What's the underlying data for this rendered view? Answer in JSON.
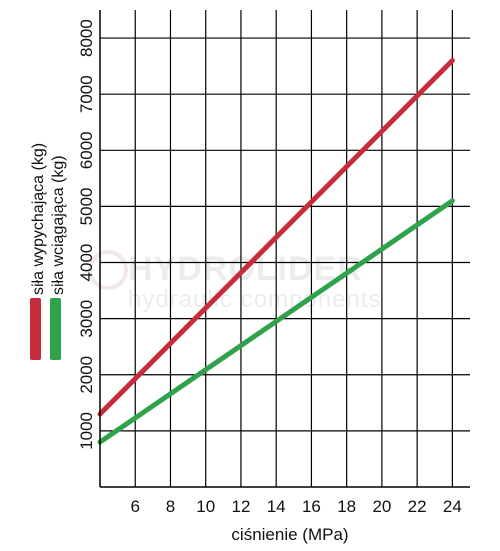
{
  "chart_data": {
    "type": "line",
    "xlabel": "ciśnienie (MPa)",
    "ylabel": "",
    "xlim": [
      4,
      25
    ],
    "ylim": [
      0,
      8500
    ],
    "x_ticks": [
      6,
      8,
      10,
      12,
      14,
      16,
      18,
      20,
      22,
      24
    ],
    "y_ticks": [
      1000,
      2000,
      3000,
      4000,
      5000,
      6000,
      7000,
      8000
    ],
    "grid": true,
    "series": [
      {
        "name": "siła wypychająca (kg)",
        "color": "#c62d3a",
        "x": [
          4,
          24
        ],
        "y": [
          1300,
          7600
        ]
      },
      {
        "name": "siła wciągająca (kg)",
        "color": "#2fa24b",
        "x": [
          4,
          24
        ],
        "y": [
          800,
          5100
        ]
      }
    ]
  },
  "watermark": {
    "brand": "HYDROLIDER",
    "tagline": "hydraulic components"
  }
}
